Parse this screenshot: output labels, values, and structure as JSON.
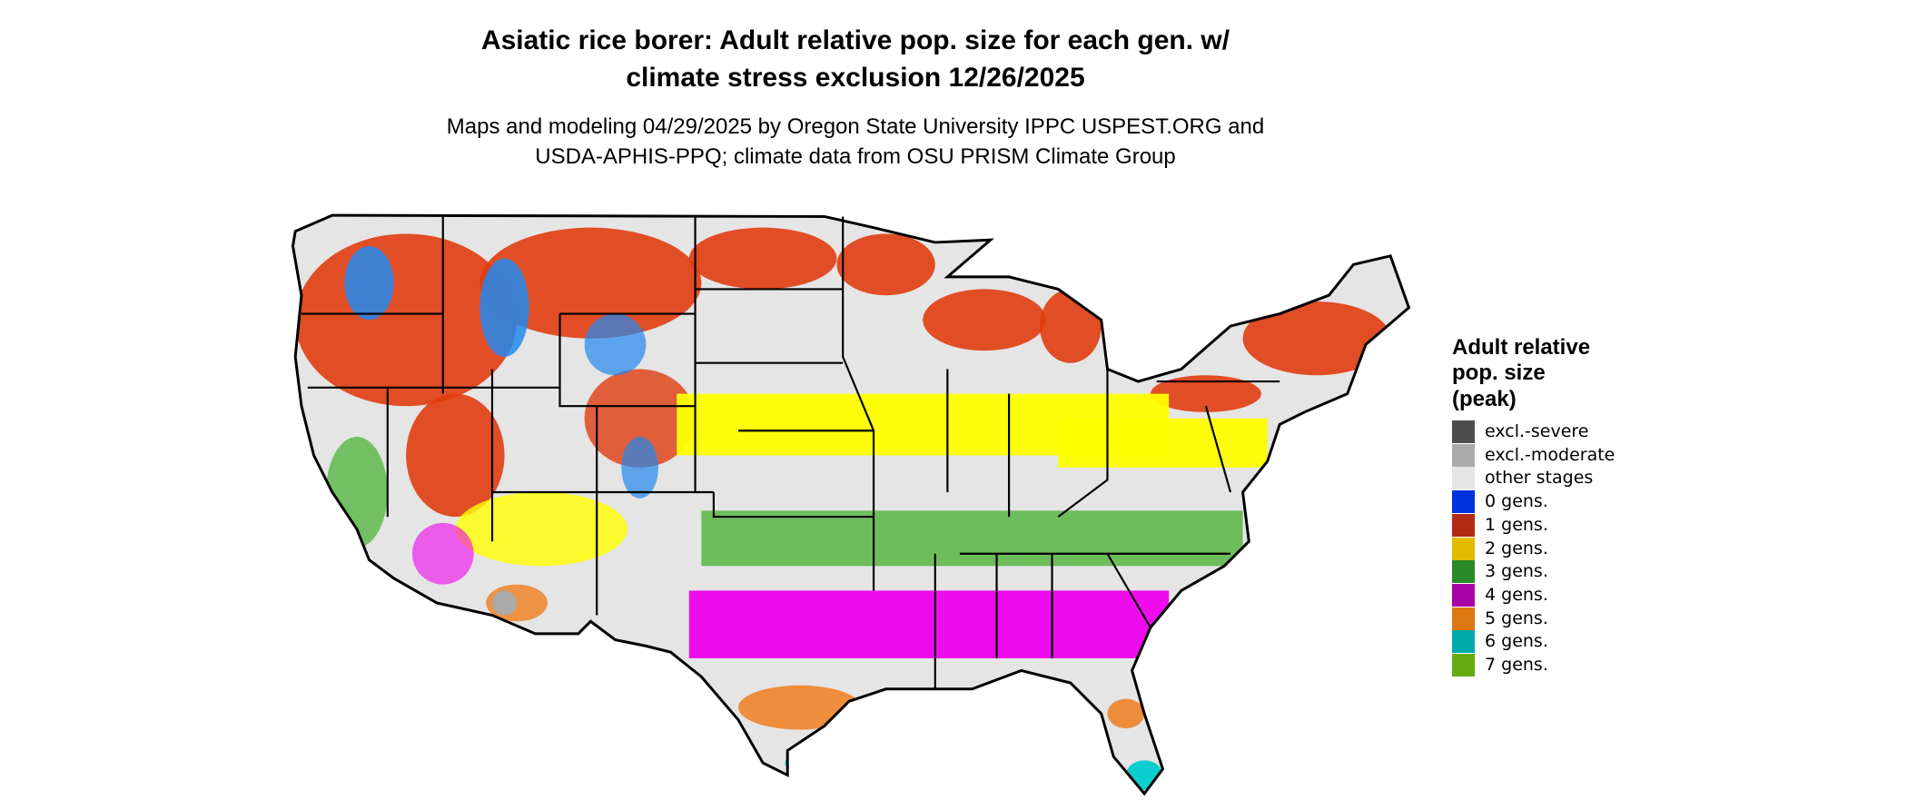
{
  "title": [
    "Asiatic rice borer: Adult relative pop. size for each gen. w/",
    "climate stress exclusion 12/26/2025"
  ],
  "subtitle": [
    "Maps and modeling 04/29/2025 by Oregon State University IPPC USPEST.ORG and",
    "USDA-APHIS-PPQ; climate data from OSU PRISM Climate Group"
  ],
  "legend": {
    "title": [
      "Adult relative",
      "pop. size",
      "(peak)"
    ],
    "items": [
      {
        "label": "excl.-severe",
        "color": "#4d4d4d"
      },
      {
        "label": "excl.-moderate",
        "color": "#aaaaaa"
      },
      {
        "label": "other stages",
        "color": "#e5e5e5"
      },
      {
        "label": "0 gens.",
        "color": "#0033dd"
      },
      {
        "label": "1 gens.",
        "color": "#b22a14"
      },
      {
        "label": "2 gens.",
        "color": "#e0bb00"
      },
      {
        "label": "3 gens.",
        "color": "#2a8a2a"
      },
      {
        "label": "4 gens.",
        "color": "#aa00aa"
      },
      {
        "label": "5 gens.",
        "color": "#dd7711"
      },
      {
        "label": "6 gens.",
        "color": "#00aaaa"
      },
      {
        "label": "7 gens.",
        "color": "#66aa11"
      }
    ]
  }
}
